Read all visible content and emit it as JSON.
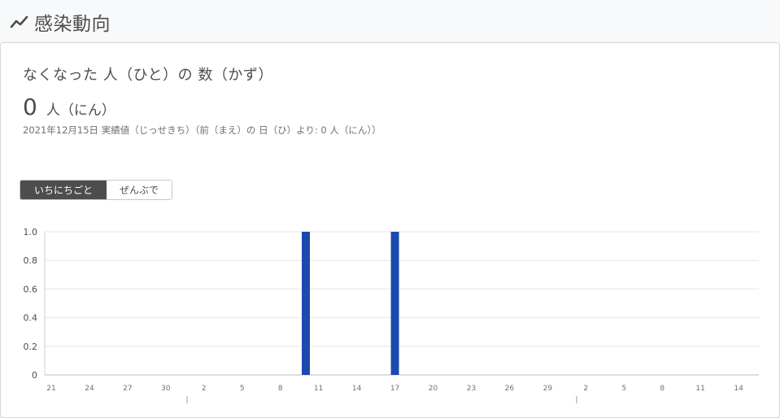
{
  "header": {
    "title": "感染動向",
    "icon": "trend-line-icon"
  },
  "card": {
    "title": "なくなった 人（ひと）の 数（かず）",
    "value": "0",
    "unit": "人（にん）",
    "note": "2021年12月15日 実績値（じっせきち）（前（まえ）の 日（ひ）より: 0 人（にん））",
    "toggle": {
      "active_label": "いちにちごと",
      "inactive_label": "ぜんぶで"
    }
  },
  "chart_data": {
    "type": "bar",
    "bar_color": "#1b4aad",
    "x_tick_labels": [
      "21",
      "24",
      "27",
      "30",
      "2",
      "5",
      "8",
      "11",
      "14",
      "17",
      "20",
      "23",
      "26",
      "29",
      "2",
      "5",
      "8",
      "11",
      "14"
    ],
    "x_tick_positions": [
      0,
      3,
      6,
      9,
      12,
      15,
      18,
      21,
      24,
      27,
      30,
      33,
      36,
      39,
      42,
      45,
      48,
      51,
      54
    ],
    "bars": [
      {
        "x": 20,
        "value": 1
      },
      {
        "x": 27,
        "value": 1
      }
    ],
    "y_tick_labels": [
      "0",
      "0.2",
      "0.4",
      "0.6",
      "0.8",
      "1.0"
    ],
    "ylim": [
      0,
      1
    ],
    "grid": true
  }
}
